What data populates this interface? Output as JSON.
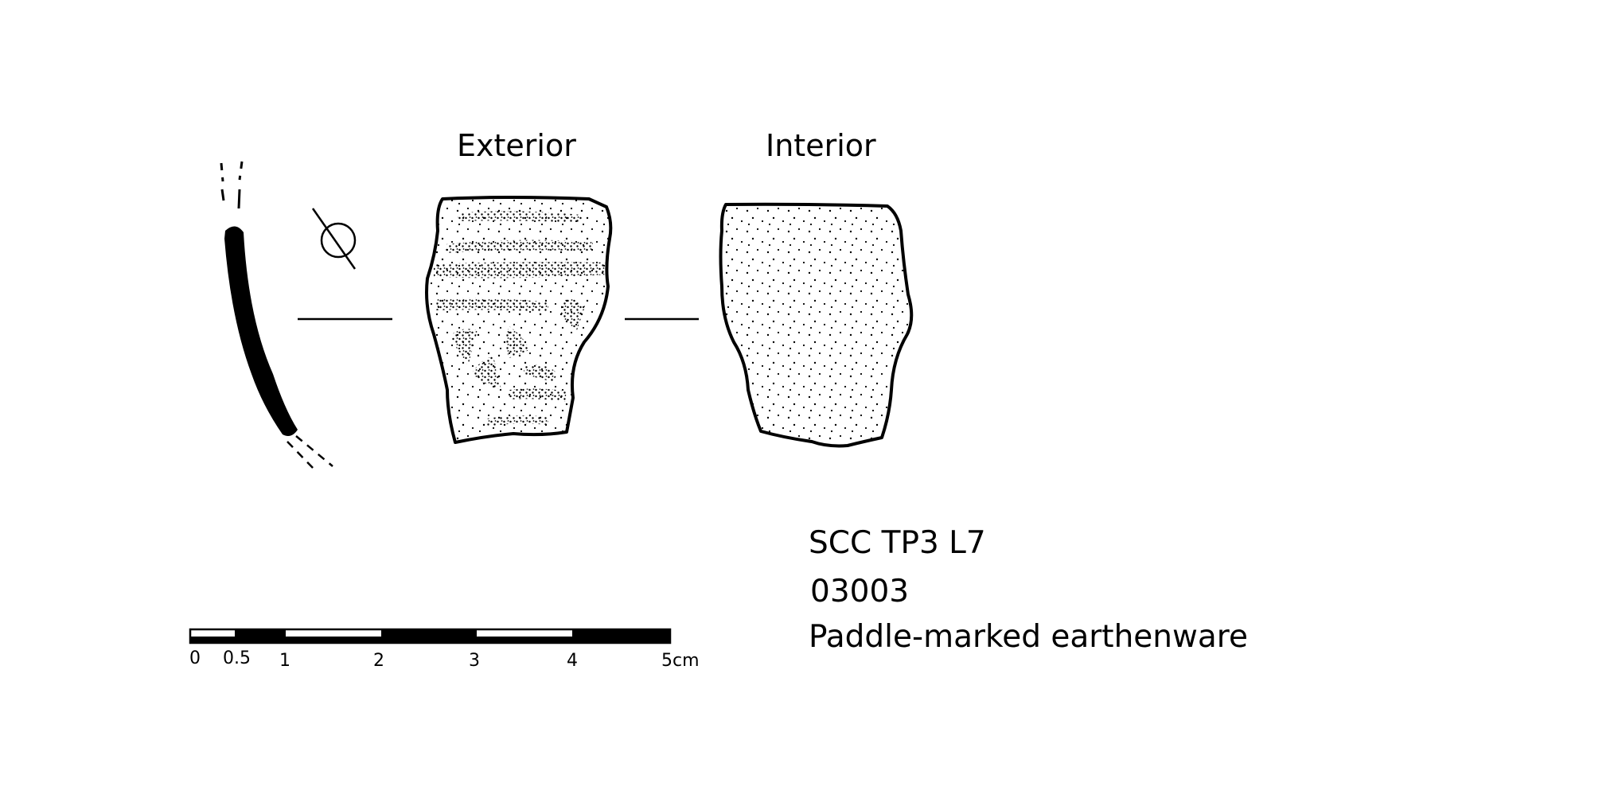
{
  "views": {
    "exterior": "Exterior",
    "interior": "Interior"
  },
  "specimen": {
    "context": "SCC TP3 L7",
    "catalog_number": "03003",
    "description": "Paddle-marked earthenware"
  },
  "scale_bar": {
    "tick_labels": [
      "0",
      "0.5",
      "1",
      "2",
      "3",
      "4",
      "5cm"
    ]
  },
  "colors": {
    "ink": "#000000",
    "paper": "#ffffff"
  }
}
